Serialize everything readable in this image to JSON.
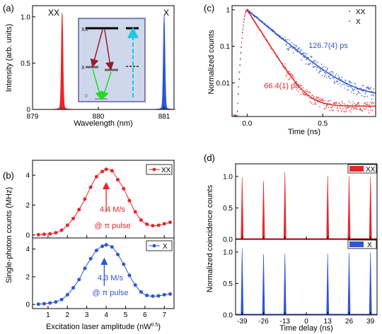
{
  "colors": {
    "red": "#e8262a",
    "blue": "#2f55d4",
    "green": "#22dd22",
    "cyan": "#1ec8e6",
    "darkred": "#9b1b30",
    "inset_bg": "#cfd7ec"
  },
  "chart_data": [
    {
      "id": "a",
      "type": "area",
      "panel_label": "(a)",
      "xlabel": "Wavelength (nm)",
      "ylabel": "Intensity (arb. units)",
      "xlim": [
        879,
        881.15
      ],
      "ylim": [
        0,
        1.12
      ],
      "xticks": [
        879,
        880,
        881
      ],
      "yticks": [
        0,
        0.5,
        1.0
      ],
      "ytick_labels": [
        "0",
        "0.5",
        "1.0"
      ],
      "series": [
        {
          "name": "XX",
          "center": 879.45,
          "fwhm": 0.03,
          "peak": 1.0,
          "color": "#e8262a"
        },
        {
          "name": "X",
          "center": 881.0,
          "fwhm": 0.03,
          "peak": 0.97,
          "color": "#2f55d4"
        }
      ],
      "inset": {
        "level_xx": "XX",
        "level_x": "X",
        "level_0": "0"
      }
    },
    {
      "id": "b_top",
      "type": "line",
      "panel_label": "(b)",
      "ylabel": "Single-photon counts (MHz)",
      "xlim": [
        0.2,
        7.5
      ],
      "ylim": [
        -0.2,
        5
      ],
      "yticks": [
        0,
        2,
        4
      ],
      "legend": "XX",
      "color": "#e8262a",
      "x": [
        0.5,
        0.8,
        1.1,
        1.4,
        1.7,
        2.0,
        2.3,
        2.6,
        2.9,
        3.2,
        3.5,
        3.8,
        4.0,
        4.3,
        4.6,
        4.9,
        5.2,
        5.5,
        5.8,
        6.1,
        6.4,
        6.7,
        7.0,
        7.3
      ],
      "y": [
        0.02,
        0.05,
        0.08,
        0.15,
        0.32,
        0.65,
        1.1,
        1.7,
        2.4,
        3.2,
        3.9,
        4.25,
        4.4,
        4.3,
        3.7,
        3.1,
        2.3,
        1.55,
        1.0,
        0.72,
        0.62,
        0.65,
        0.75,
        0.85
      ],
      "annotation": [
        "4.4 M/s",
        "@ π pulse"
      ],
      "peak_x": 4.0
    },
    {
      "id": "b_bottom",
      "type": "line",
      "xlabel": "Excitation laser amplitude (nW",
      "xlabel_sup": "0.5",
      "xlabel_end": ")",
      "xlim": [
        0.2,
        7.5
      ],
      "ylim": [
        -0.3,
        4.8
      ],
      "xticks": [
        1,
        2,
        3,
        4,
        5,
        6,
        7
      ],
      "yticks": [
        0,
        2,
        4
      ],
      "legend": "X",
      "color": "#2f55d4",
      "x": [
        0.5,
        0.8,
        1.1,
        1.4,
        1.7,
        2.0,
        2.3,
        2.6,
        2.9,
        3.2,
        3.5,
        3.8,
        4.0,
        4.3,
        4.6,
        4.9,
        5.2,
        5.5,
        5.8,
        6.1,
        6.4,
        6.7,
        7.0,
        7.3
      ],
      "y": [
        0.02,
        0.05,
        0.1,
        0.18,
        0.35,
        0.7,
        1.2,
        1.8,
        2.6,
        3.3,
        3.9,
        4.2,
        4.3,
        4.15,
        3.6,
        2.9,
        2.1,
        1.4,
        0.9,
        0.65,
        0.6,
        0.62,
        0.7,
        0.75
      ],
      "annotation": [
        "4.3 M/s",
        "@ π pulse"
      ],
      "peak_x": 3.9
    },
    {
      "id": "c",
      "type": "scatter",
      "panel_label": "(c)",
      "xlabel": "Time (ns)",
      "ylabel": "Normalized counts",
      "scale_y": "log",
      "xlim": [
        -0.1,
        0.85
      ],
      "ylim": [
        0.0012,
        1.3
      ],
      "xticks": [
        0,
        0.5
      ],
      "xtick_labels": [
        "0.0",
        "0.5"
      ],
      "yticks": [
        0.01,
        0.1,
        1
      ],
      "ytick_labels": [
        "0.01",
        "0.1",
        "1"
      ],
      "legend": [
        "XX",
        "X"
      ],
      "series": [
        {
          "name": "X",
          "tau_ps": 126.7,
          "offset": 0.004,
          "label": "126.7(4) ps",
          "color": "#2f55d4"
        },
        {
          "name": "XX",
          "tau_ps": 66.4,
          "offset": 0.0023,
          "label": "66.4(1) ps",
          "color": "#e8262a"
        }
      ]
    },
    {
      "id": "d_top",
      "type": "bar",
      "panel_label": "(d)",
      "ylabel": "Normalized coincidence counts",
      "xlim": [
        -43,
        43
      ],
      "ylim": [
        0,
        1.2
      ],
      "yticks": [
        0,
        0.5,
        1.0
      ],
      "ytick_labels": [
        "0.0",
        "0.5",
        "1.0"
      ],
      "legend": "XX",
      "color": "#e8262a",
      "peaks": [
        {
          "t": -39,
          "h": 0.98
        },
        {
          "t": -26,
          "h": 0.93
        },
        {
          "t": -13,
          "h": 1.07
        },
        {
          "t": 0,
          "h": 0.03
        },
        {
          "t": 13,
          "h": 1.01
        },
        {
          "t": 26,
          "h": 1.0
        },
        {
          "t": 39,
          "h": 0.99
        }
      ]
    },
    {
      "id": "d_bottom",
      "type": "bar",
      "xlabel": "Time delay (ns)",
      "xlim": [
        -43,
        43
      ],
      "ylim": [
        0,
        1.2
      ],
      "xticks": [
        -39,
        -26,
        -13,
        0,
        13,
        26,
        39
      ],
      "yticks": [
        0,
        0.5,
        1.0
      ],
      "ytick_labels": [
        "0.0",
        "0.5",
        "1.0"
      ],
      "legend": "X",
      "color": "#2f55d4",
      "peaks": [
        {
          "t": -39,
          "h": 1.06
        },
        {
          "t": -26,
          "h": 0.97
        },
        {
          "t": -13,
          "h": 0.97
        },
        {
          "t": 0,
          "h": 0.02
        },
        {
          "t": 13,
          "h": 0.97
        },
        {
          "t": 26,
          "h": 0.99
        },
        {
          "t": 39,
          "h": 0.99
        }
      ]
    }
  ]
}
